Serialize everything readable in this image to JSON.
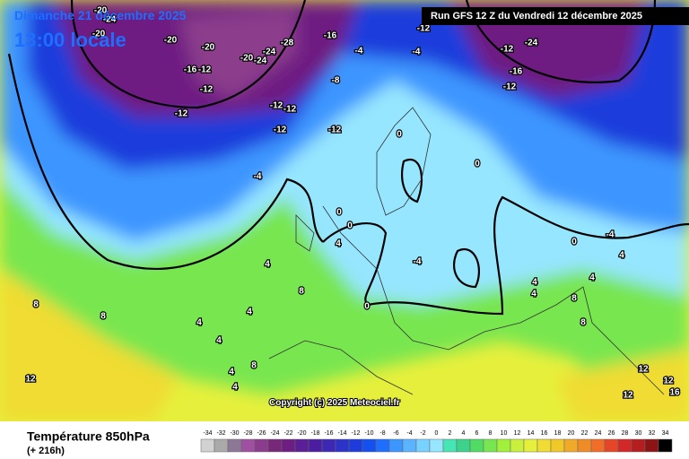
{
  "header": {
    "date": "Dimanche 21 décembre 2025",
    "time": "13:00 locale",
    "run": "Run GFS 12 Z du Vendredi 12 décembre 2025"
  },
  "copyright": "Copyright (c) 2025 Meteociel.fr",
  "footer": {
    "title": "Température 850hPa",
    "lead": "(+ 216h)"
  },
  "contour_labels": [
    -20,
    -24,
    -20,
    -20,
    -20,
    -16,
    -12,
    -12,
    -24,
    -28,
    -20,
    -24,
    -16,
    -12,
    -12,
    -12,
    -12,
    -8,
    -4,
    -4,
    -12,
    -16,
    -24,
    -12,
    -12,
    -12,
    -4,
    0,
    0,
    0,
    -4,
    0,
    4,
    4,
    8,
    8,
    8,
    4,
    4,
    4,
    8,
    4,
    4,
    12,
    12,
    12,
    16,
    12,
    8,
    8,
    4,
    4,
    4,
    0,
    -4,
    4,
    0
  ],
  "colorbar": {
    "ticks": [
      -34,
      -32,
      -30,
      -28,
      -26,
      -24,
      -22,
      -20,
      -18,
      -16,
      -14,
      -12,
      -10,
      -8,
      -6,
      -4,
      -2,
      0,
      2,
      4,
      6,
      8,
      10,
      12,
      14,
      16,
      18,
      20,
      22,
      24,
      26,
      28,
      30,
      32,
      34
    ],
    "colors": [
      "#d2d2d2",
      "#aaaaaa",
      "#8c7896",
      "#a050a0",
      "#8c3c8c",
      "#782878",
      "#6e1e82",
      "#5a1e96",
      "#4b1ea0",
      "#3c28b4",
      "#2d32c8",
      "#1e3cdc",
      "#1450f0",
      "#1e6eff",
      "#3c96ff",
      "#5ab4ff",
      "#78d2ff",
      "#96e6ff",
      "#46e6b4",
      "#3cd28c",
      "#50dc64",
      "#78e650",
      "#a0f03c",
      "#c8f03c",
      "#e6f03c",
      "#f0dc32",
      "#f0c828",
      "#f0aa28",
      "#f08c28",
      "#f06e28",
      "#e64628",
      "#d22828",
      "#b41e1e",
      "#8c1414",
      "#000000"
    ]
  }
}
